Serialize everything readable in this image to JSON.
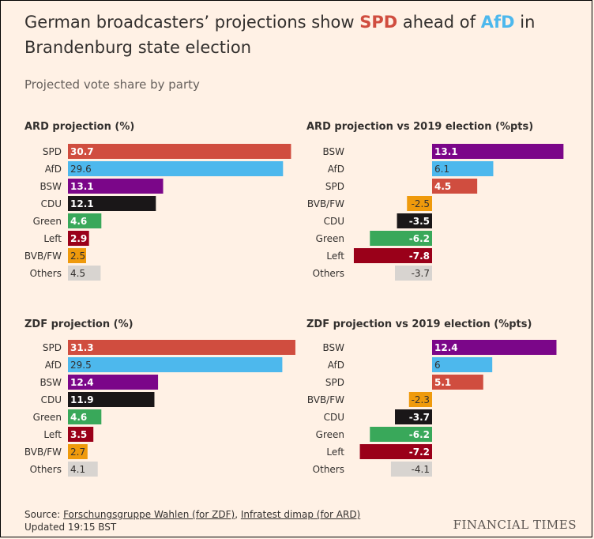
{
  "header": {
    "title_part1": "German broadcasters’ projections show ",
    "title_spd": "SPD",
    "title_part2": " ahead of ",
    "title_afd": "AfD",
    "title_part3": " in Brandenburg state election",
    "subtitle": "Projected vote share by party"
  },
  "colors": {
    "background": "#fff1e5",
    "SPD": "#d04d3f",
    "AfD": "#4db8ed",
    "BSW": "#7b0689",
    "CDU": "#1a1718",
    "Green": "#39a85a",
    "Left": "#9a0019",
    "BVB/FW": "#ef9a0c",
    "Others": "#d8d4d0"
  },
  "chart_data": [
    {
      "type": "bar",
      "orientation": "horizontal",
      "title": "ARD projection (%)",
      "categories": [
        "SPD",
        "AfD",
        "BSW",
        "CDU",
        "Green",
        "Left",
        "BVB/FW",
        "Others"
      ],
      "values": [
        30.7,
        29.6,
        13.1,
        12.1,
        4.6,
        2.9,
        2.5,
        4.5
      ],
      "labels": [
        "30.7",
        "29.6",
        "13.1",
        "12.1",
        "4.6",
        "2.9",
        "2.5",
        "4.5"
      ]
    },
    {
      "type": "bar",
      "orientation": "horizontal",
      "title": "ARD projection vs 2019 election (%pts)",
      "categories": [
        "BSW",
        "AfD",
        "SPD",
        "BVB/FW",
        "CDU",
        "Green",
        "Left",
        "Others"
      ],
      "values": [
        13.1,
        6.1,
        4.5,
        -2.5,
        -3.5,
        -6.2,
        -7.8,
        -3.7
      ],
      "labels": [
        "13.1",
        "6.1",
        "4.5",
        "-2.5",
        "-3.5",
        "-6.2",
        "-7.8",
        "-3.7"
      ]
    },
    {
      "type": "bar",
      "orientation": "horizontal",
      "title": "ZDF projection (%)",
      "categories": [
        "SPD",
        "AfD",
        "BSW",
        "CDU",
        "Green",
        "Left",
        "BVB/FW",
        "Others"
      ],
      "values": [
        31.3,
        29.5,
        12.4,
        11.9,
        4.6,
        3.5,
        2.7,
        4.1
      ],
      "labels": [
        "31.3",
        "29.5",
        "12.4",
        "11.9",
        "4.6",
        "3.5",
        "2.7",
        "4.1"
      ]
    },
    {
      "type": "bar",
      "orientation": "horizontal",
      "title": "ZDF projection vs 2019 election (%pts)",
      "categories": [
        "BSW",
        "AfD",
        "SPD",
        "BVB/FW",
        "CDU",
        "Green",
        "Left",
        "Others"
      ],
      "values": [
        12.4,
        6,
        5.1,
        -2.3,
        -3.7,
        -6.2,
        -7.2,
        -4.1
      ],
      "labels": [
        "12.4",
        "6",
        "5.1",
        "-2.3",
        "-3.7",
        "-6.2",
        "-7.2",
        "-4.1"
      ]
    }
  ],
  "footer": {
    "source_prefix": "Source: ",
    "source_zdf": "Forschungsgruppe Wahlen (for ZDF)",
    "source_sep": ", ",
    "source_ard": "Infratest dimap (for ARD)",
    "updated": "Updated 19:15 BST",
    "brand": "FINANCIAL TIMES"
  }
}
